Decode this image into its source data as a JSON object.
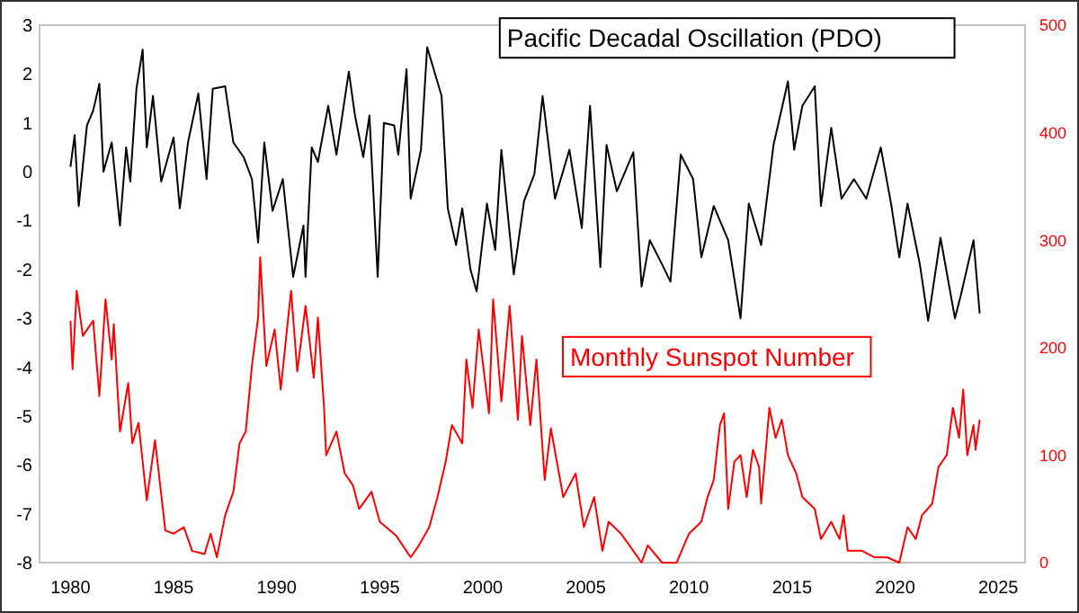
{
  "chart_data": {
    "type": "line",
    "xlim": [
      1978.5,
      2026.3
    ],
    "xticks": [
      1980,
      1985,
      1990,
      1995,
      2000,
      2005,
      2010,
      2015,
      2020,
      2025
    ],
    "ylim": [
      -8,
      3
    ],
    "yticks": [
      -8,
      -7,
      -6,
      -5,
      -4,
      -3,
      -2,
      -1,
      0,
      1,
      2,
      3
    ],
    "y2lim": [
      0,
      500
    ],
    "y2ticks": [
      0,
      100,
      200,
      300,
      400,
      500
    ],
    "grid": false,
    "series": [
      {
        "name": "Pacific Decadal Oscillation (PDO)",
        "color": "#000000",
        "x": [
          1980.0,
          1980.2,
          1980.4,
          1980.8,
          1981.1,
          1981.4,
          1981.6,
          1982.0,
          1982.4,
          1982.7,
          1982.9,
          1983.2,
          1983.5,
          1983.7,
          1984.0,
          1984.4,
          1985.0,
          1985.3,
          1985.7,
          1986.2,
          1986.6,
          1986.9,
          1987.5,
          1987.9,
          1988.4,
          1988.8,
          1989.1,
          1989.4,
          1989.8,
          1990.3,
          1990.8,
          1991.3,
          1991.4,
          1991.7,
          1992.0,
          1992.5,
          1992.9,
          1993.5,
          1993.8,
          1994.2,
          1994.5,
          1994.9,
          1995.2,
          1995.7,
          1995.9,
          1996.3,
          1996.5,
          1997.0,
          1997.3,
          1998.0,
          1998.3,
          1998.7,
          1999.0,
          1999.4,
          1999.7,
          2000.2,
          2000.6,
          2000.9,
          2001.5,
          2002.0,
          2002.5,
          2002.9,
          2003.5,
          2004.2,
          2004.8,
          2005.2,
          2005.7,
          2006.0,
          2006.5,
          2007.3,
          2007.7,
          2008.1,
          2008.7,
          2009.1,
          2009.6,
          2010.2,
          2010.6,
          2011.2,
          2011.9,
          2012.5,
          2012.9,
          2013.5,
          2014.1,
          2014.8,
          2015.1,
          2015.5,
          2016.1,
          2016.4,
          2016.9,
          2017.4,
          2018.0,
          2018.6,
          2019.3,
          2019.8,
          2020.2,
          2020.6,
          2021.2,
          2021.6,
          2022.2,
          2022.9,
          2023.2,
          2023.8,
          2024.1
        ],
        "values": [
          0.1,
          0.75,
          -0.7,
          0.95,
          1.25,
          1.8,
          0,
          0.6,
          -1.1,
          0.5,
          -0.2,
          1.7,
          2.5,
          0.5,
          1.55,
          -0.2,
          0.7,
          -0.75,
          0.6,
          1.6,
          -0.15,
          1.7,
          1.75,
          0.6,
          0.3,
          -0.15,
          -1.45,
          0.6,
          -0.8,
          -0.15,
          -2.15,
          -1.1,
          -2.15,
          0.5,
          0.2,
          1.35,
          0.35,
          2.05,
          1.15,
          0.3,
          1.15,
          -2.15,
          1.0,
          0.95,
          0.35,
          2.1,
          -0.55,
          0.45,
          2.55,
          1.55,
          -0.75,
          -1.5,
          -0.75,
          -2.0,
          -2.45,
          -0.65,
          -1.6,
          0.45,
          -2.1,
          -0.6,
          -0.05,
          1.55,
          -0.55,
          0.45,
          -1.15,
          1.35,
          -1.95,
          0.55,
          -0.4,
          0.4,
          -2.35,
          -1.4,
          -1.9,
          -2.25,
          0.35,
          -0.15,
          -1.75,
          -0.7,
          -1.4,
          -3.0,
          -0.65,
          -1.5,
          0.55,
          1.85,
          0.45,
          1.35,
          1.75,
          -0.7,
          0.9,
          -0.55,
          -0.15,
          -0.55,
          0.5,
          -0.65,
          -1.75,
          -0.65,
          -1.9,
          -3.05,
          -1.35,
          -3.0,
          -2.5,
          -1.4,
          -2.9
        ]
      },
      {
        "name": "Monthly Sunspot Number",
        "color": "#ff0000",
        "axis": "y2",
        "x": [
          1980.0,
          1980.1,
          1980.3,
          1980.6,
          1981.1,
          1981.4,
          1981.7,
          1982.0,
          1982.1,
          1982.4,
          1982.8,
          1983.0,
          1983.3,
          1983.7,
          1984.1,
          1984.6,
          1985.0,
          1985.5,
          1985.9,
          1986.5,
          1986.8,
          1987.1,
          1987.5,
          1987.9,
          1988.2,
          1988.5,
          1988.8,
          1989.1,
          1989.2,
          1989.5,
          1989.9,
          1990.2,
          1990.5,
          1990.7,
          1991.0,
          1991.4,
          1991.8,
          1992.0,
          1992.3,
          1992.4,
          1992.9,
          1993.3,
          1993.7,
          1994.0,
          1994.6,
          1995.0,
          1995.8,
          1996.5,
          1996.9,
          1997.4,
          1997.8,
          1998.2,
          1998.5,
          1999.0,
          1999.2,
          1999.5,
          1999.8,
          2000.3,
          2000.5,
          2000.9,
          2001.3,
          2001.7,
          2001.9,
          2002.3,
          2002.6,
          2003.0,
          2003.3,
          2003.9,
          2004.5,
          2004.9,
          2005.4,
          2005.8,
          2006.1,
          2006.7,
          2007.3,
          2007.7,
          2008.0,
          2008.7,
          2009.4,
          2010.0,
          2010.6,
          2010.9,
          2011.2,
          2011.5,
          2011.7,
          2011.9,
          2012.2,
          2012.5,
          2012.8,
          2013.1,
          2013.4,
          2013.5,
          2013.9,
          2014.2,
          2014.5,
          2014.8,
          2015.2,
          2015.5,
          2016.1,
          2016.4,
          2016.9,
          2017.3,
          2017.5,
          2017.7,
          2018.4,
          2019.0,
          2019.6,
          2020.2,
          2020.6,
          2021.0,
          2021.3,
          2021.8,
          2022.1,
          2022.5,
          2022.8,
          2023.1,
          2023.3,
          2023.5,
          2023.8,
          2023.9,
          2024.1
        ],
        "values": [
          225,
          180,
          253,
          211,
          225,
          155,
          245,
          189,
          222,
          122,
          167,
          111,
          130,
          58,
          114,
          30,
          27,
          33,
          11,
          8,
          27,
          5,
          44,
          66,
          111,
          122,
          183,
          228,
          284,
          183,
          217,
          161,
          217,
          253,
          178,
          239,
          172,
          228,
          144,
          100,
          122,
          83,
          72,
          50,
          66,
          38,
          25,
          5,
          16,
          33,
          61,
          94,
          128,
          111,
          189,
          144,
          217,
          139,
          245,
          150,
          239,
          133,
          211,
          128,
          189,
          77,
          125,
          61,
          83,
          33,
          61,
          11,
          38,
          27,
          11,
          0,
          16,
          0,
          0,
          27,
          38,
          61,
          77,
          128,
          139,
          50,
          94,
          100,
          61,
          105,
          89,
          55,
          144,
          116,
          133,
          100,
          83,
          61,
          50,
          22,
          38,
          22,
          44,
          11,
          11,
          5,
          5,
          0,
          33,
          22,
          44,
          55,
          89,
          100,
          144,
          116,
          161,
          100,
          128,
          105,
          133
        ]
      }
    ]
  }
}
